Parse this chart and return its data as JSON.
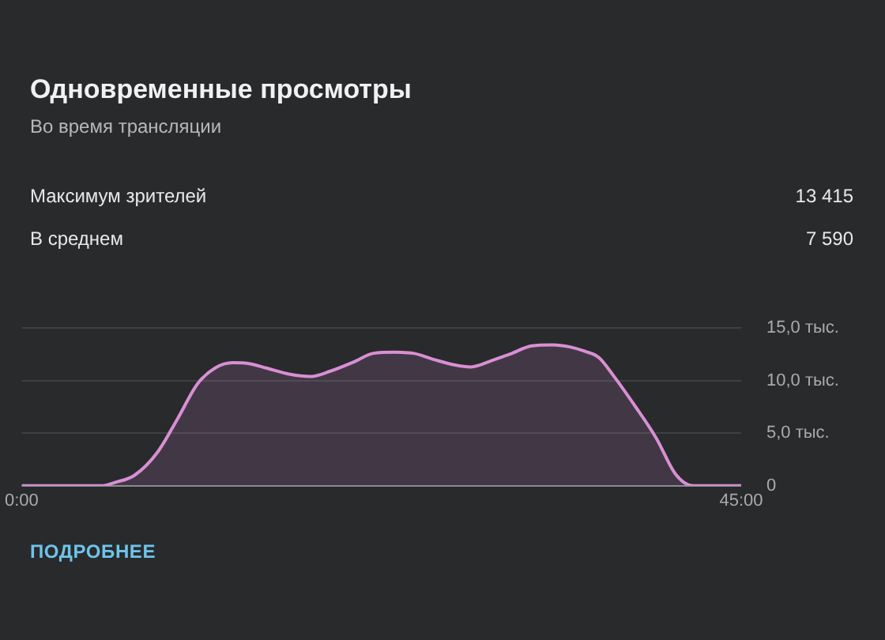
{
  "chart_data": {
    "type": "area",
    "title": "Одновременные просмотры",
    "subtitle": "Во время трансляции",
    "annotations": [
      "Максимум зрителей",
      "13 415",
      "В среднем",
      "7 590",
      "ПОДРОБНЕЕ"
    ],
    "series": [
      {
        "color": "#d98fd4",
        "x": [
          0,
          5.1,
          5.8,
          7.06,
          8.5,
          9.76,
          11.0,
          12.1,
          13.2,
          14.3,
          15.3,
          16.8,
          18.1,
          19.3,
          20.8,
          22.0,
          23.3,
          24.5,
          25.8,
          27.05,
          28.1,
          29.4,
          30.5,
          31.9,
          33.2,
          34.3,
          35.2,
          36.1,
          37.0,
          38.4,
          39.7,
          40.9,
          42.0,
          45
        ],
        "values": [
          0,
          0,
          0.3,
          1.0,
          3.2,
          6.4,
          9.7,
          11.2,
          11.7,
          11.6,
          11.2,
          10.6,
          10.4,
          10.9,
          11.8,
          12.6,
          12.7,
          12.6,
          12.0,
          11.5,
          11.3,
          11.9,
          12.5,
          13.3,
          13.4,
          13.2,
          12.8,
          12.2,
          10.5,
          7.5,
          4.5,
          1.1,
          0,
          0
        ]
      }
    ],
    "xlim": [
      0,
      45
    ],
    "xticks": [
      {
        "value": 0,
        "label": "0:00"
      },
      {
        "value": 45,
        "label": "45:00"
      }
    ],
    "ylim": [
      0,
      15
    ],
    "yticks": [
      0,
      {
        "value": 5,
        "label": "5,0 тыс."
      },
      {
        "value": 10,
        "label": "10,0 тыс."
      },
      {
        "value": 15,
        "label": "15,0 тыс."
      }
    ],
    "grid": "y",
    "legend": false,
    "marker": "none"
  }
}
